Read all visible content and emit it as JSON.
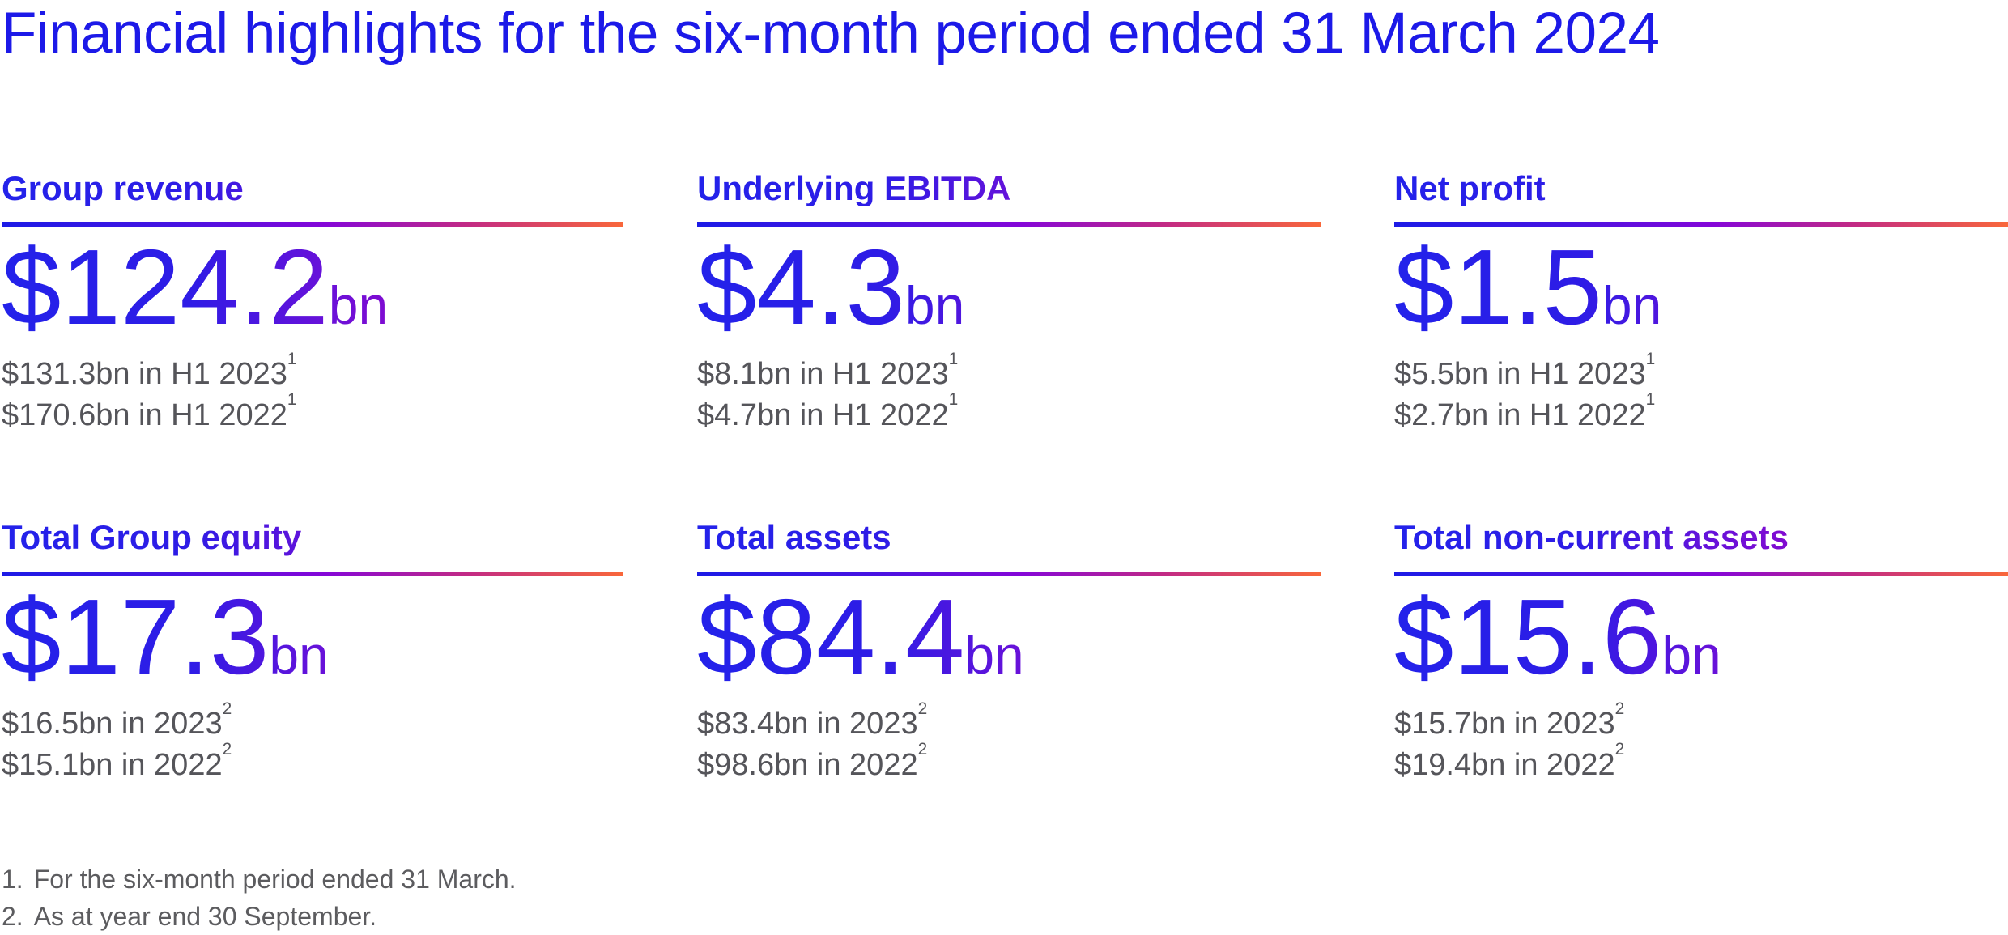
{
  "title": "Financial highlights for the six-month period ended 31 March 2024",
  "colors": {
    "title_blue": "#1c19e8",
    "grad_blue": "#2322ea",
    "grad_blue2": "#2e1ce6",
    "grad_violet": "#6911d9",
    "grad_purple": "#9107cb",
    "grad_magenta": "#bb0aab",
    "rule_blue": "#1c1be6",
    "rule_indigo": "#4713e2",
    "rule_purple": "#8506d8",
    "rule_crimson": "#c22a84",
    "rule_orange": "#f9673a",
    "subtext_gray": "#55555a",
    "footnote_gray": "#5c5c5f"
  },
  "cards": [
    {
      "heading": "Group revenue",
      "value": "$124.2",
      "unit": "bn",
      "comparisons": [
        {
          "amount": "$131.3bn in H1 2023",
          "ref": "1"
        },
        {
          "amount": "$170.6bn in H1 2022",
          "ref": "1"
        }
      ]
    },
    {
      "heading": "Underlying EBITDA",
      "value": "$4.3",
      "unit": "bn",
      "comparisons": [
        {
          "amount": "$8.1bn in H1 2023",
          "ref": "1"
        },
        {
          "amount": "$4.7bn in H1 2022",
          "ref": "1"
        }
      ]
    },
    {
      "heading": "Net profit",
      "value": "$1.5",
      "unit": "bn",
      "comparisons": [
        {
          "amount": "$5.5bn in H1 2023",
          "ref": "1"
        },
        {
          "amount": "$2.7bn in H1 2022",
          "ref": "1"
        }
      ]
    },
    {
      "heading": "Total Group equity",
      "value": "$17.3",
      "unit": "bn",
      "comparisons": [
        {
          "amount": "$16.5bn in 2023",
          "ref": "2"
        },
        {
          "amount": "$15.1bn in 2022",
          "ref": "2"
        }
      ]
    },
    {
      "heading": "Total assets",
      "value": "$84.4",
      "unit": "bn",
      "comparisons": [
        {
          "amount": "$83.4bn in 2023",
          "ref": "2"
        },
        {
          "amount": "$98.6bn in 2022",
          "ref": "2"
        }
      ]
    },
    {
      "heading": "Total non-current assets",
      "value": "$15.6",
      "unit": "bn",
      "comparisons": [
        {
          "amount": "$15.7bn in 2023",
          "ref": "2"
        },
        {
          "amount": "$19.4bn in 2022",
          "ref": "2"
        }
      ]
    }
  ],
  "footnotes": [
    {
      "marker": "1.",
      "text": "For the six-month period ended 31 March."
    },
    {
      "marker": "2.",
      "text": "As at year end 30 September."
    }
  ]
}
